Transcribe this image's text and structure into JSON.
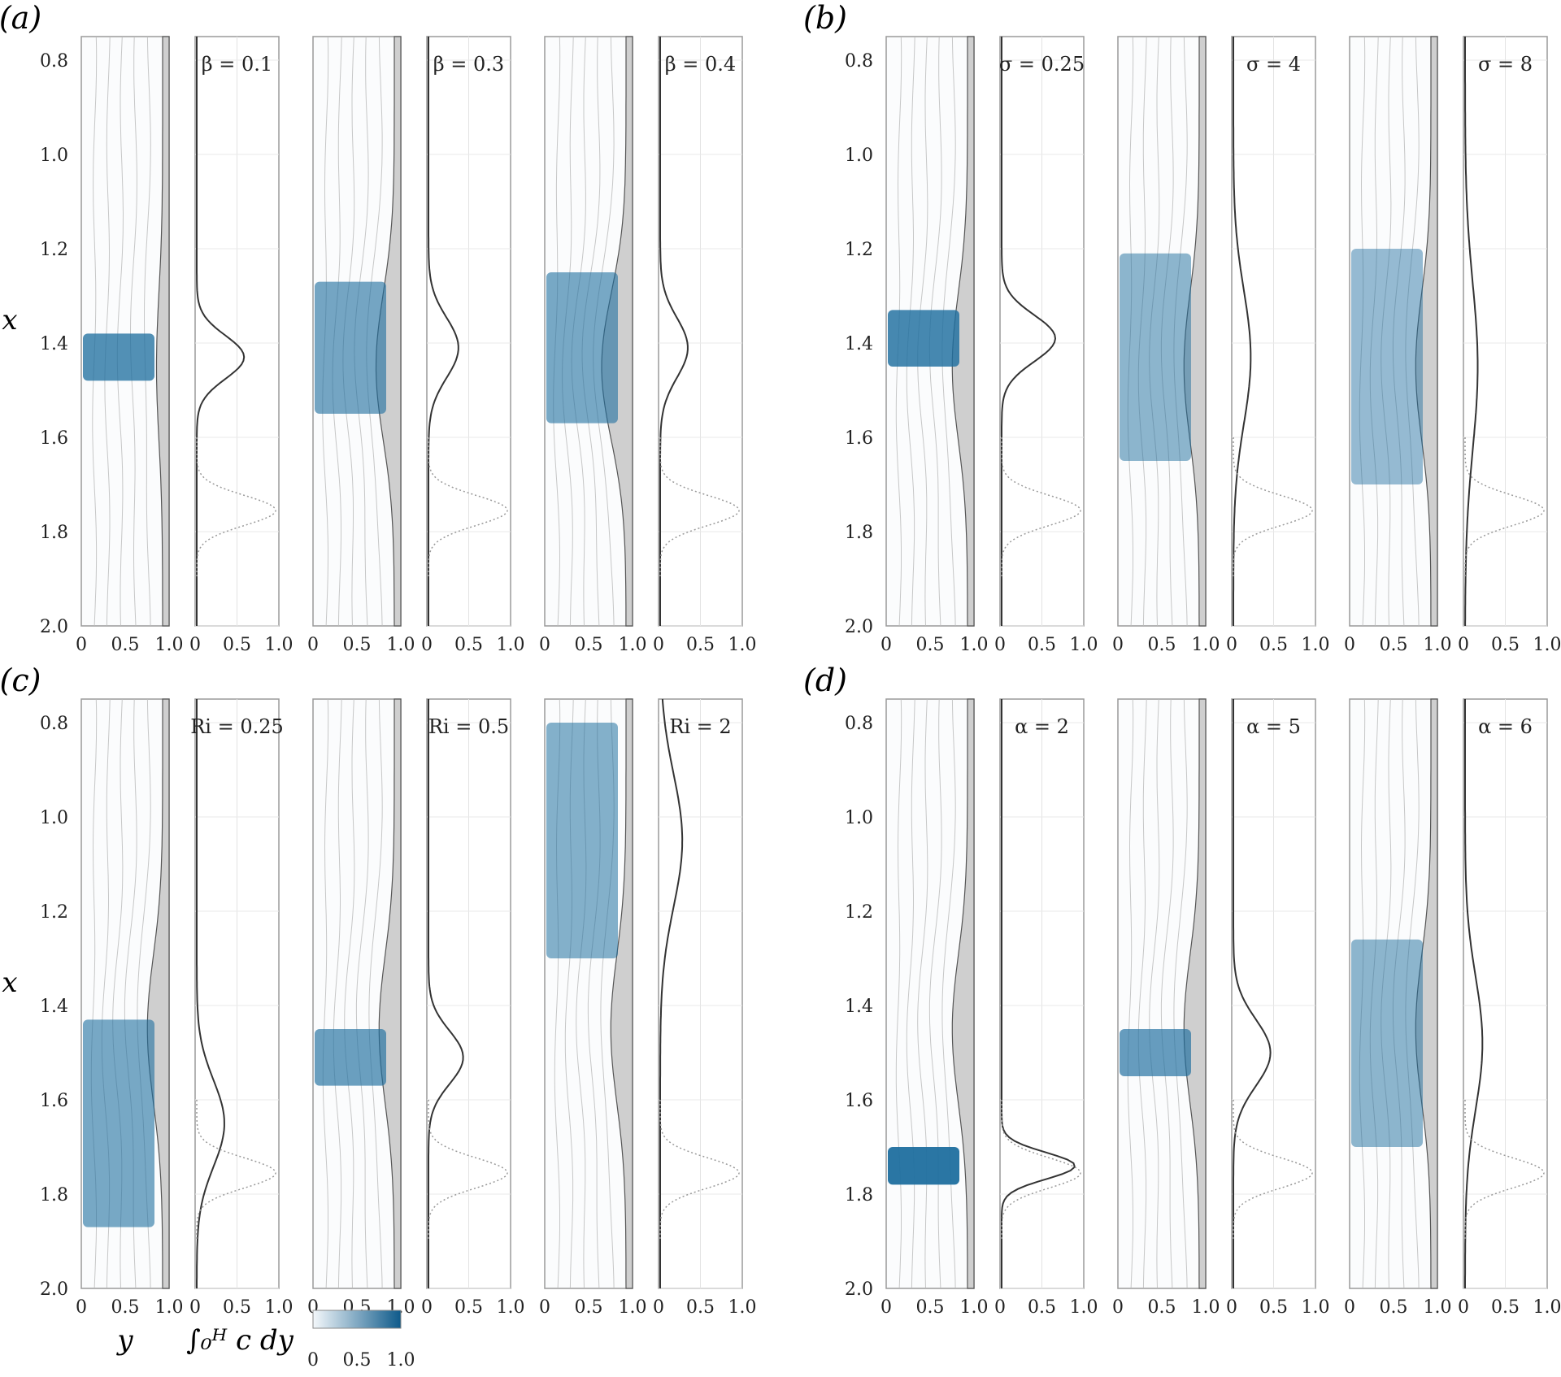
{
  "figure": {
    "y_axis_label": "x",
    "x_axis_label": "y",
    "integral_label": "∫₀ᴴ c dy",
    "colorbar": {
      "ticks": [
        "0",
        "0.5",
        "1.0"
      ],
      "colors": [
        "#f4f8fb",
        "#0e5a8a"
      ]
    },
    "colors": {
      "concentration": "#1f6f9f",
      "wall": "#cfcfcf",
      "streamline": "#b9b9b9",
      "frame": "#9a9a9a"
    }
  },
  "chart_data": [
    {
      "panel": "(a)",
      "type": "contour-with-line-profiles",
      "x_range": [
        0.75,
        2.0
      ],
      "y_ticks": [
        "0.8",
        "1.0",
        "1.2",
        "1.4",
        "1.6",
        "1.8",
        "2.0"
      ],
      "contour_x_ticks": [
        "0",
        "0.5",
        "1.0"
      ],
      "profile_x_ticks": [
        "0",
        "0.5",
        "1.0"
      ],
      "cases": [
        {
          "label": "β = 0.1",
          "peak_x": 1.43,
          "peak_value": 0.6,
          "spread": 0.065,
          "band_width": 0.05,
          "wall_amp": 0.1,
          "tilt": 0.0
        },
        {
          "label": "β = 0.3",
          "peak_x": 1.41,
          "peak_value": 0.38,
          "spread": 0.09,
          "band_width": 0.14,
          "wall_amp": 0.3,
          "tilt": 0.18
        },
        {
          "label": "β = 0.4",
          "peak_x": 1.41,
          "peak_value": 0.35,
          "spread": 0.09,
          "band_width": 0.16,
          "wall_amp": 0.4,
          "tilt": 0.2
        }
      ]
    },
    {
      "panel": "(b)",
      "type": "contour-with-line-profiles",
      "x_range": [
        0.75,
        2.0
      ],
      "y_ticks": [
        "0.8",
        "1.0",
        "1.2",
        "1.4",
        "1.6",
        "1.8",
        "2.0"
      ],
      "contour_x_ticks": [
        "0",
        "0.5",
        "1.0"
      ],
      "profile_x_ticks": [
        "0",
        "0.5",
        "1.0"
      ],
      "cases": [
        {
          "label": "σ = 0.25",
          "peak_x": 1.39,
          "peak_value": 0.68,
          "spread": 0.07,
          "band_width": 0.06,
          "wall_amp": 0.25,
          "tilt": 0.0
        },
        {
          "label": "σ = 4",
          "peak_x": 1.43,
          "peak_value": 0.22,
          "spread": 0.2,
          "band_width": 0.22,
          "wall_amp": 0.25,
          "tilt": 0.0
        },
        {
          "label": "σ = 8",
          "peak_x": 1.45,
          "peak_value": 0.16,
          "spread": 0.25,
          "band_width": 0.25,
          "wall_amp": 0.25,
          "tilt": 0.0
        }
      ]
    },
    {
      "panel": "(c)",
      "type": "contour-with-line-profiles",
      "x_range": [
        0.75,
        2.0
      ],
      "y_ticks": [
        "0.8",
        "1.0",
        "1.2",
        "1.4",
        "1.6",
        "1.8",
        "2.0"
      ],
      "contour_x_ticks": [
        "0",
        "0.5",
        "1.0"
      ],
      "profile_x_ticks": [
        "0",
        "0.5",
        "1.0"
      ],
      "cases": [
        {
          "label": "Ri = 0.25",
          "peak_x": 1.65,
          "peak_value": 0.35,
          "spread": 0.13,
          "band_width": 0.22,
          "wall_amp": 0.25,
          "tilt": 0.0
        },
        {
          "label": "Ri = 0.5",
          "peak_x": 1.51,
          "peak_value": 0.44,
          "spread": 0.08,
          "band_width": 0.06,
          "wall_amp": 0.25,
          "tilt": 0.0
        },
        {
          "label": "Ri = 2",
          "peak_x": 1.05,
          "peak_value": 0.28,
          "spread": 0.2,
          "band_width": 0.25,
          "wall_amp": 0.25,
          "tilt": 0.0
        }
      ]
    },
    {
      "panel": "(d)",
      "type": "contour-with-line-profiles",
      "x_range": [
        0.75,
        2.0
      ],
      "y_ticks": [
        "0.8",
        "1.0",
        "1.2",
        "1.4",
        "1.6",
        "1.8",
        "2.0"
      ],
      "contour_x_ticks": [
        "0",
        "0.5",
        "1.0"
      ],
      "profile_x_ticks": [
        "0",
        "0.5",
        "1.0"
      ],
      "cases": [
        {
          "label": "α = 2",
          "peak_x": 1.74,
          "peak_value": 0.93,
          "spread": 0.04,
          "band_width": 0.04,
          "wall_amp": 0.25,
          "tilt": 0.0
        },
        {
          "label": "α = 5",
          "peak_x": 1.5,
          "peak_value": 0.47,
          "spread": 0.1,
          "band_width": 0.05,
          "wall_amp": 0.25,
          "tilt": 0.0
        },
        {
          "label": "α = 6",
          "peak_x": 1.48,
          "peak_value": 0.22,
          "spread": 0.2,
          "band_width": 0.22,
          "wall_amp": 0.25,
          "tilt": 0.0
        }
      ]
    }
  ]
}
